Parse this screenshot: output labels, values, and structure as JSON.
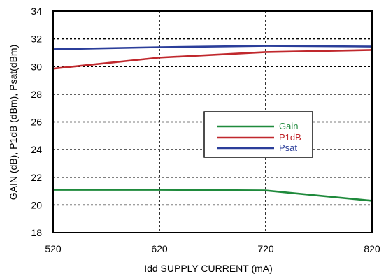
{
  "chart_data": {
    "type": "line",
    "xlabel": "Idd SUPPLY CURRENT (mA)",
    "ylabel": "GAIN (dB), P1dB (dBm), Psat(dBm)",
    "xlim": [
      520,
      820
    ],
    "ylim": [
      18,
      34
    ],
    "x_ticks": [
      520,
      620,
      720,
      820
    ],
    "y_ticks": [
      18,
      20,
      22,
      24,
      26,
      28,
      30,
      32,
      34
    ],
    "grid": "dotted",
    "legend_position": "center-right",
    "series": [
      {
        "name": "Gain",
        "color": "#1f8a3c",
        "x": [
          520,
          620,
          720,
          820
        ],
        "y": [
          21.1,
          21.1,
          21.05,
          20.3
        ]
      },
      {
        "name": "P1dB",
        "color": "#c0282d",
        "x": [
          520,
          620,
          720,
          820
        ],
        "y": [
          29.85,
          30.65,
          31.05,
          31.2
        ]
      },
      {
        "name": "Psat",
        "color": "#2b3e9a",
        "x": [
          520,
          620,
          720,
          820
        ],
        "y": [
          31.25,
          31.4,
          31.5,
          31.45
        ]
      }
    ]
  }
}
